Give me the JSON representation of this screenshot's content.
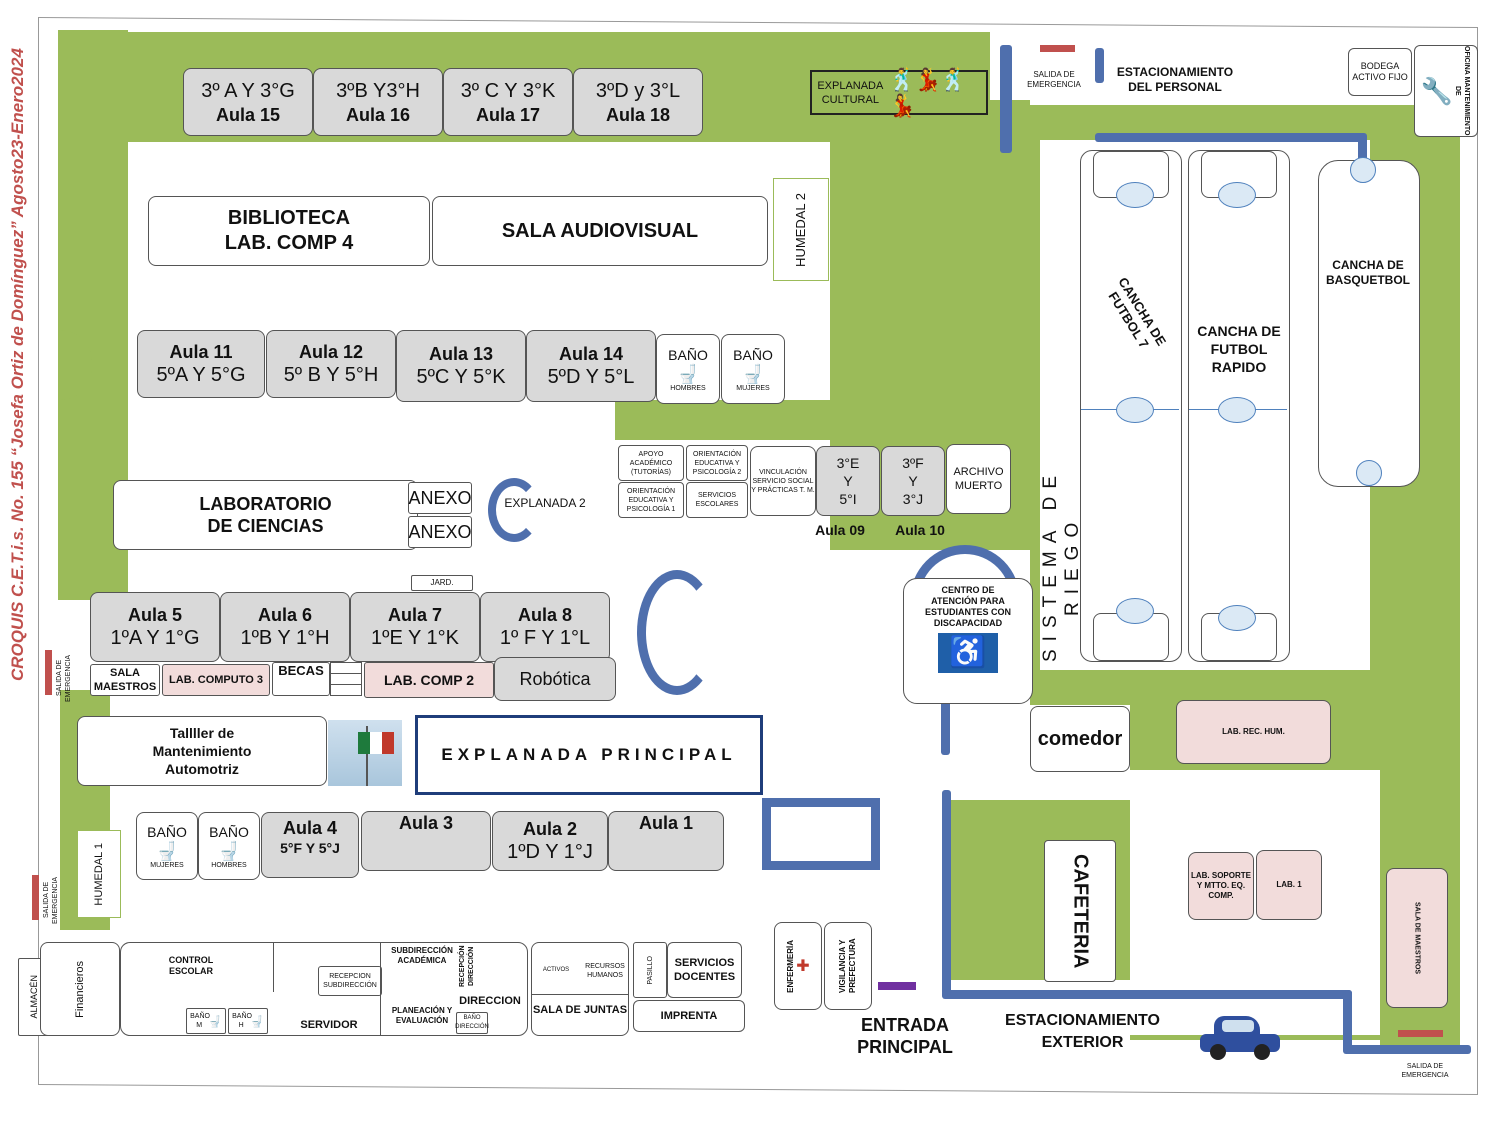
{
  "title": "CROQUIS C.E.T.i.s. No. 155 “Josefa Ortiz de Domínguez” Agosto23-Enero2024",
  "top_row": [
    {
      "grades": "3º A Y 3°G",
      "aula": "Aula 15"
    },
    {
      "grades": "3ºB Y3°H",
      "aula": "Aula 16"
    },
    {
      "grades": "3º C Y 3°K",
      "aula": "Aula 17"
    },
    {
      "grades": "3ºD y 3°L",
      "aula": "Aula 18"
    }
  ],
  "explanada_cultural": "EXPLANADA CULTURAL",
  "salida_emergencia": "SALIDA DE EMERGENCIA",
  "estacionamiento_personal": "ESTACIONAMIENTO DEL PERSONAL",
  "bodega": "BODEGA ACTIVO FIJO",
  "oficina_mant": "OFICINA MANTENIMIENTO DE",
  "biblioteca_line1": "BIBLIOTECA",
  "biblioteca_line2": "LAB. COMP 4",
  "sala_audiovisual": "SALA AUDIOVISUAL",
  "humedal2": "HUMEDAL 2",
  "humedal1": "HUMEDAL 1",
  "row_11_14": [
    {
      "aula": "Aula 11",
      "grades": "5ºA Y 5°G"
    },
    {
      "aula": "Aula 12",
      "grades": "5º B Y 5°H"
    },
    {
      "aula": "Aula 13",
      "grades": "5ºC Y 5°K"
    },
    {
      "aula": "Aula 14",
      "grades": "5ºD Y 5°L"
    }
  ],
  "bano": "BAÑO",
  "hombres": "HOMBRES",
  "mujeres": "MUJERES",
  "cancha_futbol7": "CANCHA DE FUTBOL 7",
  "cancha_rapido": "CANCHA DE FUTBOL RAPIDO",
  "cancha_basquet": "CANCHA DE BASQUETBOL",
  "lab_ciencias_l1": "LABORATORIO",
  "lab_ciencias_l2": "DE CIENCIAS",
  "anexo": "ANEXO",
  "explanada2": "EXPLANADA 2",
  "apoyo": "APOYO ACADÉMICO (TUTORÍAS)",
  "orient2": "ORIENTACIÓN EDUCATIVA Y PSICOLOGÍA 2",
  "orient1": "ORIENTACIÓN EDUCATIVA Y PSICOLOGÍA 1",
  "serv_escolares": "SERVICIOS ESCOLARES",
  "vinculacion": "VINCULACIÓN SERVICIO SOCIAL Y PRÁCTICAS T. M.",
  "aula9_grades": [
    "3°E",
    "Y",
    "5°I"
  ],
  "aula10_grades": [
    "3ºF",
    "Y",
    "3°J"
  ],
  "aula9": "Aula 09",
  "aula10": "Aula 10",
  "archivo": "ARCHIVO MUERTO",
  "sistema_riego": "SISTEMA DE RIEGO",
  "jard": "JARD.",
  "row_5_8": [
    {
      "aula": "Aula 5",
      "grades": "1ºA Y 1°G"
    },
    {
      "aula": "Aula 6",
      "grades": "1ºB Y 1°H"
    },
    {
      "aula": "Aula 7",
      "grades": "1ºE Y 1°K"
    },
    {
      "aula": "Aula 8",
      "grades": "1º F Y 1°L"
    }
  ],
  "sala_maestros": "SALA MAESTROS",
  "lab_computo3": "LAB. COMPUTO 3",
  "becas": "BECAS",
  "lab_comp2": "LAB. COMP 2",
  "robotica": "Robótica",
  "centro_atencion": "CENTRO DE ATENCIÓN PARA ESTUDIANTES CON DISCAPACIDAD",
  "taller": "Tallller de Mantenimiento Automotriz",
  "explanada_principal": "EXPLANADA PRINCIPAL",
  "comedor": "comedor",
  "lab_rec_hum": "LAB. REC. HUM.",
  "row_1_4": [
    {
      "aula": "Aula 4",
      "grades": "5°F Y 5°J"
    },
    {
      "aula": "Aula 3",
      "grades": ""
    },
    {
      "aula": "Aula 2",
      "grades": "1ºD Y 1°J"
    },
    {
      "aula": "Aula 1",
      "grades": ""
    }
  ],
  "cafeteria": "CAFETERIA",
  "lab_soporte": "LAB. SOPORTE Y MTTO. EQ. COMP.",
  "lab1": "LAB. 1",
  "sala_maestros_r": "SALA DE MAESTROS",
  "almacen": "ALMACÉN",
  "financieros": "Financieros",
  "control_escolar": "CONTROL ESCOLAR",
  "recepcion_sub": "RECEPCION SUBDIRECCIÓN",
  "bano_m": "BAÑO M",
  "bano_h": "BAÑO H",
  "servidor": "SERVIDOR",
  "subdireccion": "SUBDIRECCIÓN ACADÉMICA",
  "recepcion_dir": "RECEPCIÓN DIRECCIÓN",
  "planeacion": "PLANEACIÓN Y EVALUACIÓN",
  "direccion": "DIRECCION",
  "bano_direccion": "BAÑO DIRECCIÓN",
  "activos": "ACTIVOS",
  "recursos_humanos": "RECURSOS HUMANOS",
  "sala_juntas": "SALA DE JUNTAS",
  "pasillo": "PASILLO",
  "servicios_docentes": "SERVICIOS DOCENTES",
  "imprenta": "IMPRENTA",
  "enfermeria": "ENFERMERÍA",
  "vigilancia": "VIGILANCIA Y PREFECTURA",
  "entrada": "ENTRADA PRINCIPAL",
  "estacionamiento_ext": "ESTACIONAMIENTO EXTERIOR",
  "colors": {
    "grass": "#9bbb59",
    "walkway": "#4f6fad",
    "emergency": "#c0504d",
    "room_gray": "#d9d9d9",
    "room_pink": "#f2dcdb"
  }
}
